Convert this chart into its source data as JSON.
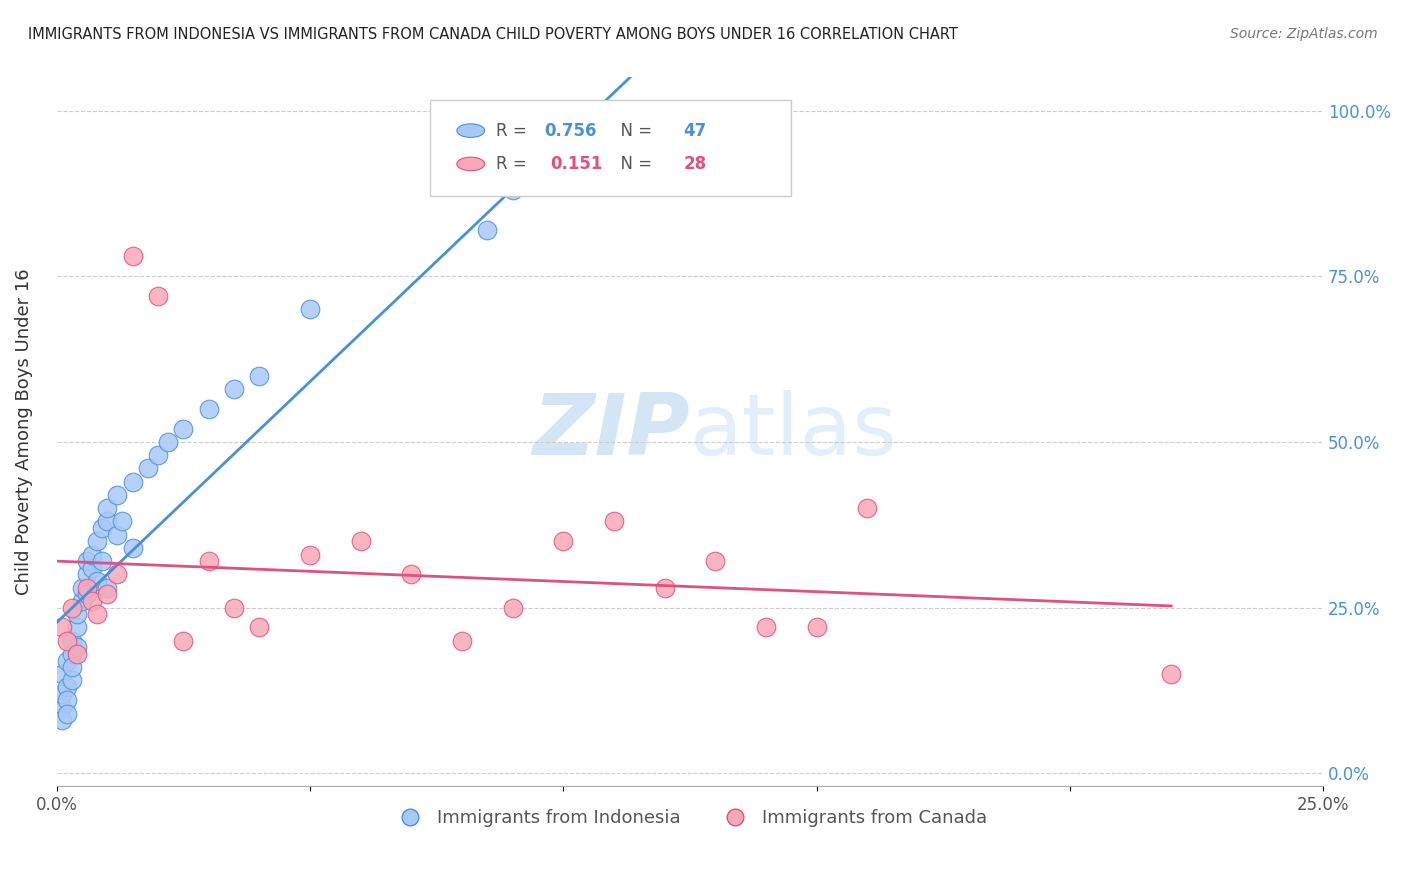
{
  "title": "IMMIGRANTS FROM INDONESIA VS IMMIGRANTS FROM CANADA CHILD POVERTY AMONG BOYS UNDER 16 CORRELATION CHART",
  "source": "Source: ZipAtlas.com",
  "ylabel": "Child Poverty Among Boys Under 16",
  "legend_label1": "Immigrants from Indonesia",
  "legend_label2": "Immigrants from Canada",
  "R1": 0.756,
  "N1": 47,
  "R2": 0.151,
  "N2": 28,
  "color1": "#a8c8f8",
  "color1_line": "#4a90d9",
  "color2": "#f8a8b8",
  "color2_line": "#e05080",
  "watermark_zip": "ZIP",
  "watermark_atlas": "atlas",
  "watermark_color_zip": "#b8d4f0",
  "watermark_color_atlas": "#c8dff8",
  "xlim": [
    0.0,
    0.25
  ],
  "ylim": [
    -0.02,
    1.05
  ],
  "right_yticks": [
    0.0,
    0.25,
    0.5,
    0.75,
    1.0
  ],
  "right_yticklabels": [
    "0.0%",
    "25.0%",
    "50.0%",
    "75.0%",
    "100.0%"
  ],
  "x_ticks": [
    0.0,
    0.05,
    0.1,
    0.15,
    0.2,
    0.25
  ],
  "x_ticklabels": [
    "0.0%",
    "",
    "",
    "",
    "",
    "25.0%"
  ],
  "background_color": "#ffffff",
  "grid_color": "#cccccc"
}
